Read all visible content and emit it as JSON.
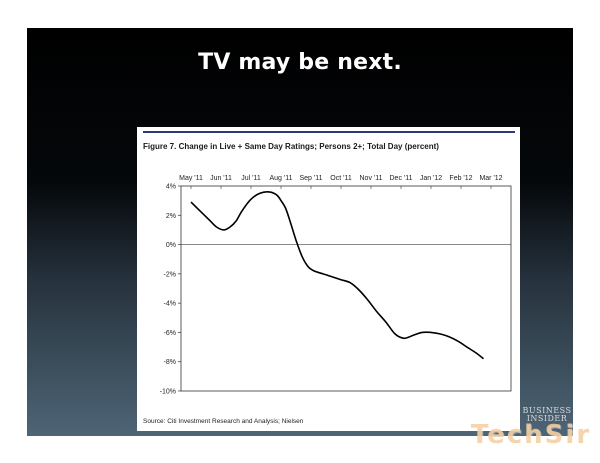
{
  "slide": {
    "title": "TV may be next."
  },
  "chart_data": {
    "type": "line",
    "title": "Figure 7. Change in Live + Same Day Ratings; Persons 2+; Total Day (percent)",
    "source": "Source: Citi Investment Research and Analysis; Nielsen",
    "x_tick_labels": [
      "May '11",
      "Jun '11",
      "Jul '11",
      "Aug '11",
      "Sep '11",
      "Oct '11",
      "Nov '11",
      "Dec '11",
      "Jan '12",
      "Feb '12",
      "Mar '12"
    ],
    "y_tick_labels": [
      "4%",
      "2%",
      "0%",
      "-2%",
      "-4%",
      "-6%",
      "-8%",
      "-10%"
    ],
    "y_ticks": [
      4,
      2,
      0,
      -2,
      -4,
      -6,
      -8,
      -10
    ],
    "ylim": [
      -10,
      4
    ],
    "xlim": [
      0,
      10
    ],
    "zero_line": true,
    "grid": false,
    "line_color": "#000000",
    "header_rule_color": "#2e3a78",
    "series": [
      {
        "x": [
          0,
          0.3,
          0.6,
          0.85,
          1.1,
          1.3,
          1.5,
          1.7,
          2.0,
          2.3,
          2.6,
          2.85,
          3.0,
          3.15,
          3.3,
          3.5,
          3.7,
          3.9,
          4.1,
          4.4,
          4.7,
          5.0,
          5.3,
          5.6,
          5.9,
          6.2,
          6.5,
          6.8,
          7.1,
          7.4,
          7.7,
          8.0,
          8.3,
          8.6,
          8.9,
          9.2,
          9.5,
          9.75
        ],
        "values": [
          2.9,
          2.3,
          1.7,
          1.2,
          1.0,
          1.2,
          1.6,
          2.3,
          3.1,
          3.5,
          3.6,
          3.4,
          3.0,
          2.5,
          1.6,
          0.3,
          -0.8,
          -1.5,
          -1.8,
          -2.0,
          -2.2,
          -2.4,
          -2.6,
          -3.1,
          -3.8,
          -4.6,
          -5.3,
          -6.1,
          -6.4,
          -6.2,
          -6.0,
          -6.0,
          -6.1,
          -6.3,
          -6.6,
          -7.0,
          -7.4,
          -7.8
        ]
      }
    ]
  },
  "watermark": {
    "brand_top": "BUSINESS",
    "brand_bottom": "INSIDER",
    "logo": "TechSir"
  }
}
